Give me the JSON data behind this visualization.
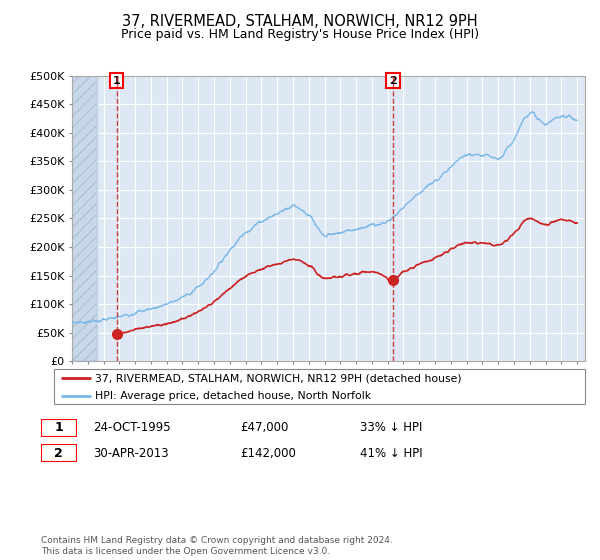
{
  "title": "37, RIVERMEAD, STALHAM, NORWICH, NR12 9PH",
  "subtitle": "Price paid vs. HM Land Registry's House Price Index (HPI)",
  "ylim": [
    0,
    500000
  ],
  "yticks": [
    0,
    50000,
    100000,
    150000,
    200000,
    250000,
    300000,
    350000,
    400000,
    450000,
    500000
  ],
  "ytick_labels": [
    "£0",
    "£50K",
    "£100K",
    "£150K",
    "£200K",
    "£250K",
    "£300K",
    "£350K",
    "£400K",
    "£450K",
    "£500K"
  ],
  "hpi_color": "#7ab8e8",
  "price_color": "#cc2222",
  "sale1_year": 1995.82,
  "sale1_price": 47000,
  "sale2_year": 2013.33,
  "sale2_price": 142000,
  "legend_entry1": "37, RIVERMEAD, STALHAM, NORWICH, NR12 9PH (detached house)",
  "legend_entry2": "HPI: Average price, detached house, North Norfolk",
  "ann1_date": "24-OCT-1995",
  "ann1_price": "£47,000",
  "ann1_hpi": "33% ↓ HPI",
  "ann2_date": "30-APR-2013",
  "ann2_price": "£142,000",
  "ann2_hpi": "41% ↓ HPI",
  "footer": "Contains HM Land Registry data © Crown copyright and database right 2024.\nThis data is licensed under the Open Government Licence v3.0.",
  "bg_color": "#dde8f4",
  "hatch_color": "#c8d8e8",
  "grid_color": "#ffffff",
  "hpi_keypoints_x": [
    1993,
    1995,
    1997,
    1998,
    1999,
    2000,
    2001,
    2002,
    2003,
    2004,
    2005,
    2006,
    2007,
    2008,
    2009,
    2010,
    2011,
    2012,
    2013,
    2014,
    2015,
    2016,
    2017,
    2018,
    2019,
    2020,
    2021,
    2022,
    2023,
    2024,
    2025
  ],
  "hpi_keypoints_y": [
    68000,
    72000,
    85000,
    92000,
    100000,
    112000,
    130000,
    158000,
    195000,
    225000,
    245000,
    258000,
    272000,
    255000,
    220000,
    225000,
    232000,
    238000,
    245000,
    270000,
    295000,
    315000,
    340000,
    360000,
    360000,
    355000,
    390000,
    435000,
    415000,
    430000,
    420000
  ],
  "red_keypoints_x": [
    1995.82,
    1996,
    1997,
    1998,
    1999,
    2000,
    2001,
    2002,
    2003,
    2004,
    2005,
    2006,
    2007,
    2008,
    2009,
    2010,
    2011,
    2012,
    2013.33,
    2014,
    2015,
    2016,
    2017,
    2018,
    2019,
    2020,
    2021,
    2022,
    2023,
    2024,
    2025
  ],
  "red_keypoints_y": [
    47000,
    48000,
    56000,
    61000,
    66000,
    74000,
    86000,
    104000,
    128000,
    148000,
    162000,
    170000,
    179000,
    168000,
    145000,
    148000,
    153000,
    157000,
    142000,
    156000,
    170000,
    181000,
    196000,
    207000,
    207000,
    204000,
    224000,
    250000,
    239000,
    247000,
    241000
  ]
}
